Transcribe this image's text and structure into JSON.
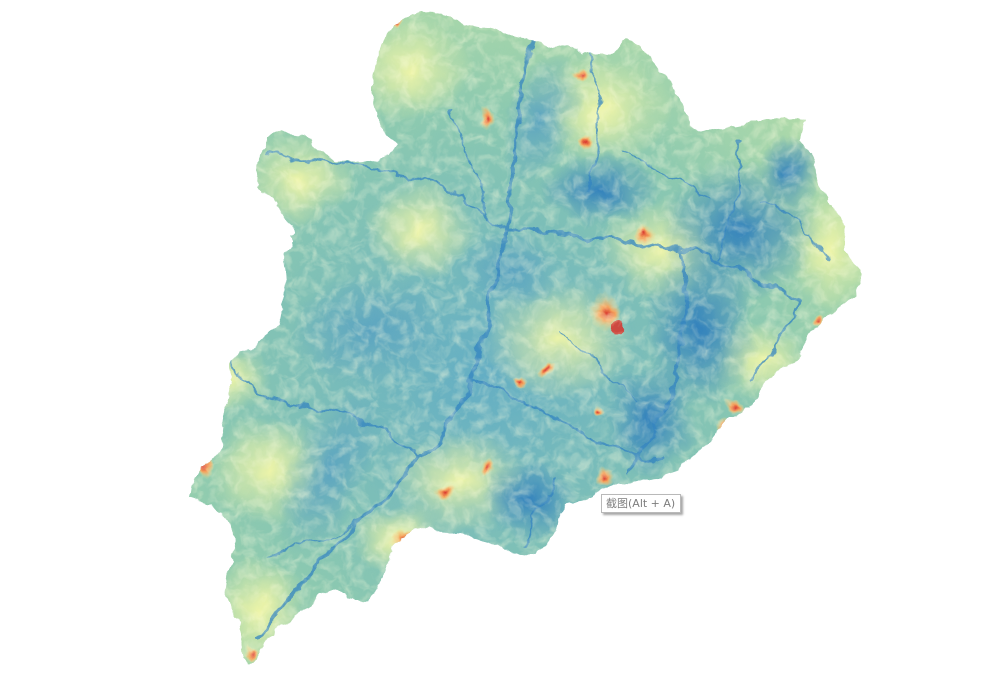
{
  "map": {
    "legend_colors": {
      "low": "#3a86c0",
      "low_mid": "#64aec4",
      "mid": "#9ad1a4",
      "mid_high": "#e9f4a0",
      "high": "#fbe896",
      "higher": "#f5a45e",
      "peak": "#d7312a"
    }
  },
  "tooltip": {
    "text": "截图(Alt + A)"
  }
}
